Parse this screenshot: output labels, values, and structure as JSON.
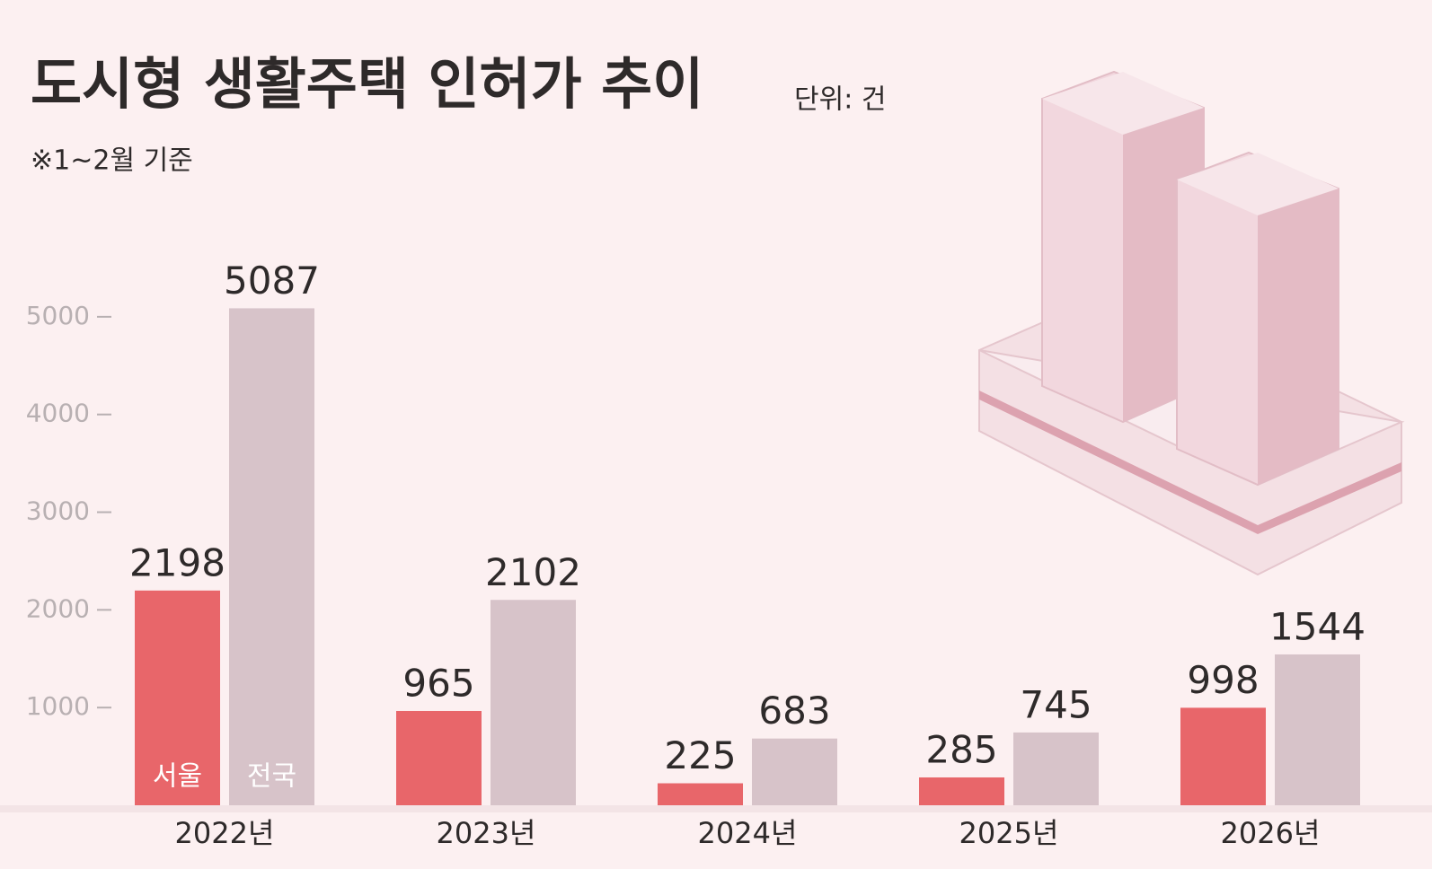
{
  "chart_data": {
    "type": "bar",
    "title": "도시형 생활주택 인허가 추이",
    "subtitle": "단위: 건",
    "note": "※1~2월 기준",
    "categories": [
      "2022년",
      "2023년",
      "2024년",
      "2025년",
      "2026년"
    ],
    "series": [
      {
        "name": "서울",
        "color": "#e8666a",
        "values": [
          2198,
          965,
          225,
          285,
          998
        ]
      },
      {
        "name": "전국",
        "color": "#d7c3c9",
        "values": [
          5087,
          2102,
          683,
          745,
          1544
        ]
      }
    ],
    "ylim": [
      0,
      5100
    ],
    "yticks": [
      1000,
      2000,
      3000,
      4000,
      5000
    ]
  }
}
